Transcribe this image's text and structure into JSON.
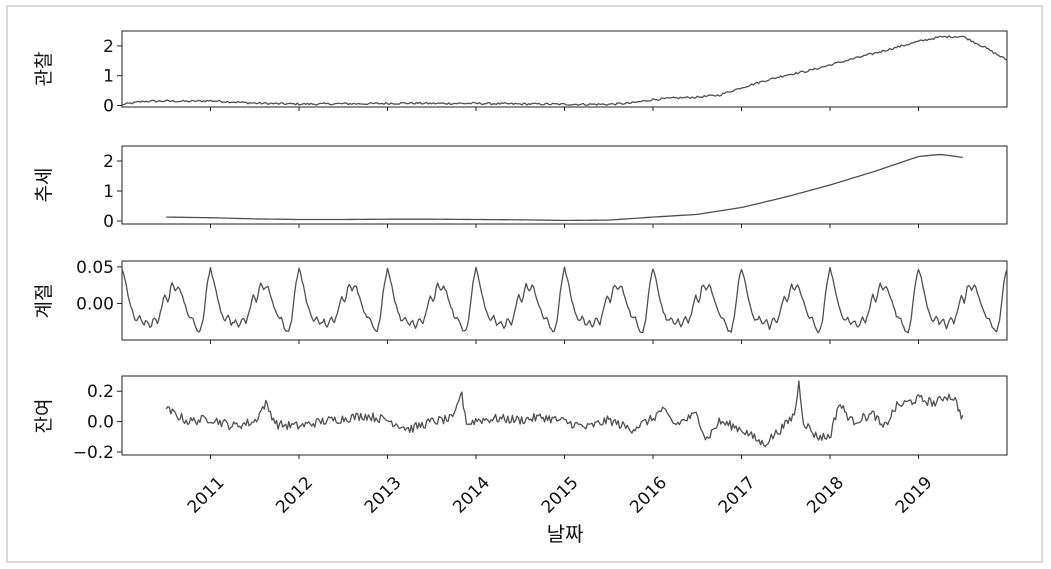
{
  "colors": {
    "line": "#505050",
    "axis": "#222222",
    "frame": "#b3b3b3",
    "background": "#ffffff"
  },
  "chart_data": {
    "type": "line",
    "title": "",
    "xlabel": "날짜",
    "x_range": [
      2010.0,
      2020.0
    ],
    "x_ticks": [
      "2011",
      "2012",
      "2013",
      "2014",
      "2015",
      "2016",
      "2017",
      "2018",
      "2019"
    ],
    "x_tick_values": [
      2011,
      2012,
      2013,
      2014,
      2015,
      2016,
      2017,
      2018,
      2019
    ],
    "panels": [
      {
        "ylabel": "관찰",
        "ylim": [
          -0.05,
          2.5
        ],
        "yticks": [
          0,
          1,
          2
        ],
        "ytick_labels": [
          "0",
          "1",
          "2"
        ],
        "x_start": 2010.0,
        "x_end": 2020.0,
        "points": [
          [
            2010.0,
            0.03
          ],
          [
            2010.25,
            0.14
          ],
          [
            2010.5,
            0.15
          ],
          [
            2010.75,
            0.14
          ],
          [
            2011.0,
            0.16
          ],
          [
            2011.25,
            0.12
          ],
          [
            2011.5,
            0.08
          ],
          [
            2011.75,
            0.06
          ],
          [
            2012.0,
            0.05
          ],
          [
            2012.25,
            0.05
          ],
          [
            2012.5,
            0.06
          ],
          [
            2012.75,
            0.06
          ],
          [
            2013.0,
            0.07
          ],
          [
            2013.25,
            0.08
          ],
          [
            2013.5,
            0.07
          ],
          [
            2013.75,
            0.07
          ],
          [
            2014.0,
            0.07
          ],
          [
            2014.25,
            0.06
          ],
          [
            2014.5,
            0.05
          ],
          [
            2014.75,
            0.05
          ],
          [
            2015.0,
            0.04
          ],
          [
            2015.25,
            0.04
          ],
          [
            2015.5,
            0.04
          ],
          [
            2015.75,
            0.08
          ],
          [
            2016.0,
            0.2
          ],
          [
            2016.25,
            0.25
          ],
          [
            2016.5,
            0.28
          ],
          [
            2016.75,
            0.35
          ],
          [
            2017.0,
            0.6
          ],
          [
            2017.25,
            0.82
          ],
          [
            2017.5,
            1.02
          ],
          [
            2017.75,
            1.16
          ],
          [
            2018.0,
            1.36
          ],
          [
            2018.25,
            1.56
          ],
          [
            2018.5,
            1.75
          ],
          [
            2018.75,
            1.95
          ],
          [
            2019.0,
            2.15
          ],
          [
            2019.25,
            2.3
          ],
          [
            2019.5,
            2.32
          ],
          [
            2019.75,
            1.95
          ],
          [
            2020.0,
            1.52
          ]
        ]
      },
      {
        "ylabel": "추세",
        "ylim": [
          -0.1,
          2.5
        ],
        "yticks": [
          0,
          1,
          2
        ],
        "ytick_labels": [
          "0",
          "1",
          "2"
        ],
        "x_start": 2010.5,
        "x_end": 2019.5,
        "points": [
          [
            2010.5,
            0.13
          ],
          [
            2011.0,
            0.11
          ],
          [
            2011.5,
            0.07
          ],
          [
            2012.0,
            0.05
          ],
          [
            2012.5,
            0.05
          ],
          [
            2013.0,
            0.06
          ],
          [
            2013.5,
            0.06
          ],
          [
            2014.0,
            0.05
          ],
          [
            2014.5,
            0.04
          ],
          [
            2015.0,
            0.02
          ],
          [
            2015.5,
            0.03
          ],
          [
            2016.0,
            0.13
          ],
          [
            2016.5,
            0.22
          ],
          [
            2017.0,
            0.45
          ],
          [
            2017.5,
            0.8
          ],
          [
            2018.0,
            1.2
          ],
          [
            2018.5,
            1.65
          ],
          [
            2019.0,
            2.15
          ],
          [
            2019.25,
            2.22
          ],
          [
            2019.5,
            2.12
          ]
        ]
      },
      {
        "ylabel": "계절",
        "ylim": [
          -0.05,
          0.058
        ],
        "yticks": [
          0.05,
          0.0
        ],
        "ytick_labels": [
          "0.05",
          "0.00"
        ],
        "x_start": 2010.0,
        "x_end": 2020.0,
        "period_pattern": [
          [
            0.0,
            0.048
          ],
          [
            0.04,
            0.03
          ],
          [
            0.08,
            0.005
          ],
          [
            0.12,
            -0.012
          ],
          [
            0.16,
            -0.025
          ],
          [
            0.2,
            -0.018
          ],
          [
            0.24,
            -0.03
          ],
          [
            0.28,
            -0.022
          ],
          [
            0.32,
            -0.035
          ],
          [
            0.36,
            -0.018
          ],
          [
            0.4,
            -0.028
          ],
          [
            0.44,
            -0.01
          ],
          [
            0.48,
            0.012
          ],
          [
            0.52,
            0.0
          ],
          [
            0.56,
            0.028
          ],
          [
            0.6,
            0.018
          ],
          [
            0.64,
            0.025
          ],
          [
            0.68,
            0.01
          ],
          [
            0.72,
            -0.005
          ],
          [
            0.76,
            -0.02
          ],
          [
            0.8,
            -0.02
          ],
          [
            0.84,
            -0.035
          ],
          [
            0.88,
            -0.04
          ],
          [
            0.92,
            -0.02
          ],
          [
            0.96,
            0.025
          ],
          [
            1.0,
            0.048
          ]
        ]
      },
      {
        "ylabel": "잔여",
        "ylim": [
          -0.22,
          0.3
        ],
        "yticks": [
          0.2,
          0.0,
          -0.2
        ],
        "ytick_labels": [
          "0.2",
          "0.0",
          "−0.2"
        ],
        "x_start": 2010.5,
        "x_end": 2019.5,
        "points": [
          [
            2010.5,
            0.08
          ],
          [
            2010.75,
            0.0
          ],
          [
            2011.0,
            0.02
          ],
          [
            2011.25,
            -0.03
          ],
          [
            2011.5,
            0.0
          ],
          [
            2011.62,
            0.12
          ],
          [
            2011.75,
            -0.02
          ],
          [
            2012.0,
            -0.03
          ],
          [
            2012.25,
            0.0
          ],
          [
            2012.5,
            0.02
          ],
          [
            2012.75,
            0.04
          ],
          [
            2013.0,
            0.01
          ],
          [
            2013.25,
            -0.05
          ],
          [
            2013.5,
            0.0
          ],
          [
            2013.75,
            0.02
          ],
          [
            2013.83,
            0.2
          ],
          [
            2013.9,
            -0.02
          ],
          [
            2014.0,
            0.01
          ],
          [
            2014.25,
            0.02
          ],
          [
            2014.5,
            0.01
          ],
          [
            2014.75,
            0.03
          ],
          [
            2015.0,
            0.0
          ],
          [
            2015.25,
            -0.04
          ],
          [
            2015.5,
            0.01
          ],
          [
            2015.75,
            -0.05
          ],
          [
            2016.0,
            0.02
          ],
          [
            2016.1,
            0.08
          ],
          [
            2016.25,
            -0.02
          ],
          [
            2016.5,
            0.05
          ],
          [
            2016.6,
            -0.12
          ],
          [
            2016.75,
            0.0
          ],
          [
            2017.0,
            -0.05
          ],
          [
            2017.25,
            -0.15
          ],
          [
            2017.5,
            -0.02
          ],
          [
            2017.6,
            0.05
          ],
          [
            2017.65,
            0.26
          ],
          [
            2017.7,
            0.0
          ],
          [
            2017.85,
            -0.1
          ],
          [
            2018.0,
            -0.1
          ],
          [
            2018.1,
            0.12
          ],
          [
            2018.25,
            0.0
          ],
          [
            2018.5,
            0.05
          ],
          [
            2018.6,
            -0.05
          ],
          [
            2018.75,
            0.1
          ],
          [
            2019.0,
            0.15
          ],
          [
            2019.2,
            0.12
          ],
          [
            2019.3,
            0.17
          ],
          [
            2019.4,
            0.16
          ],
          [
            2019.5,
            0.02
          ]
        ]
      }
    ]
  }
}
